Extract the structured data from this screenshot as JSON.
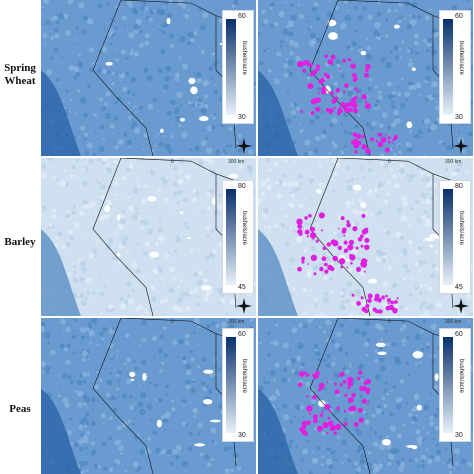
{
  "rows": [
    {
      "crop": "Spring\nWheat",
      "legend_max": "60",
      "legend_min": "30",
      "unit": "bushels/acre",
      "scale_zero": "",
      "scale_end": ""
    },
    {
      "crop": "Barley",
      "legend_max": "80",
      "legend_min": "45",
      "unit": "bushels/acre",
      "scale_zero": "0",
      "scale_end": "300 km"
    },
    {
      "crop": "Peas",
      "legend_max": "60",
      "legend_min": "30",
      "unit": "bushels/acre",
      "scale_zero": "0",
      "scale_end": "300 km"
    }
  ],
  "colors": {
    "map_blue": "#5b8fc6",
    "map_light": "#dbe7f3",
    "highlight": "#e020e0",
    "ramp_dark": "#08306b",
    "ramp_light": "#e8f1fa"
  }
}
